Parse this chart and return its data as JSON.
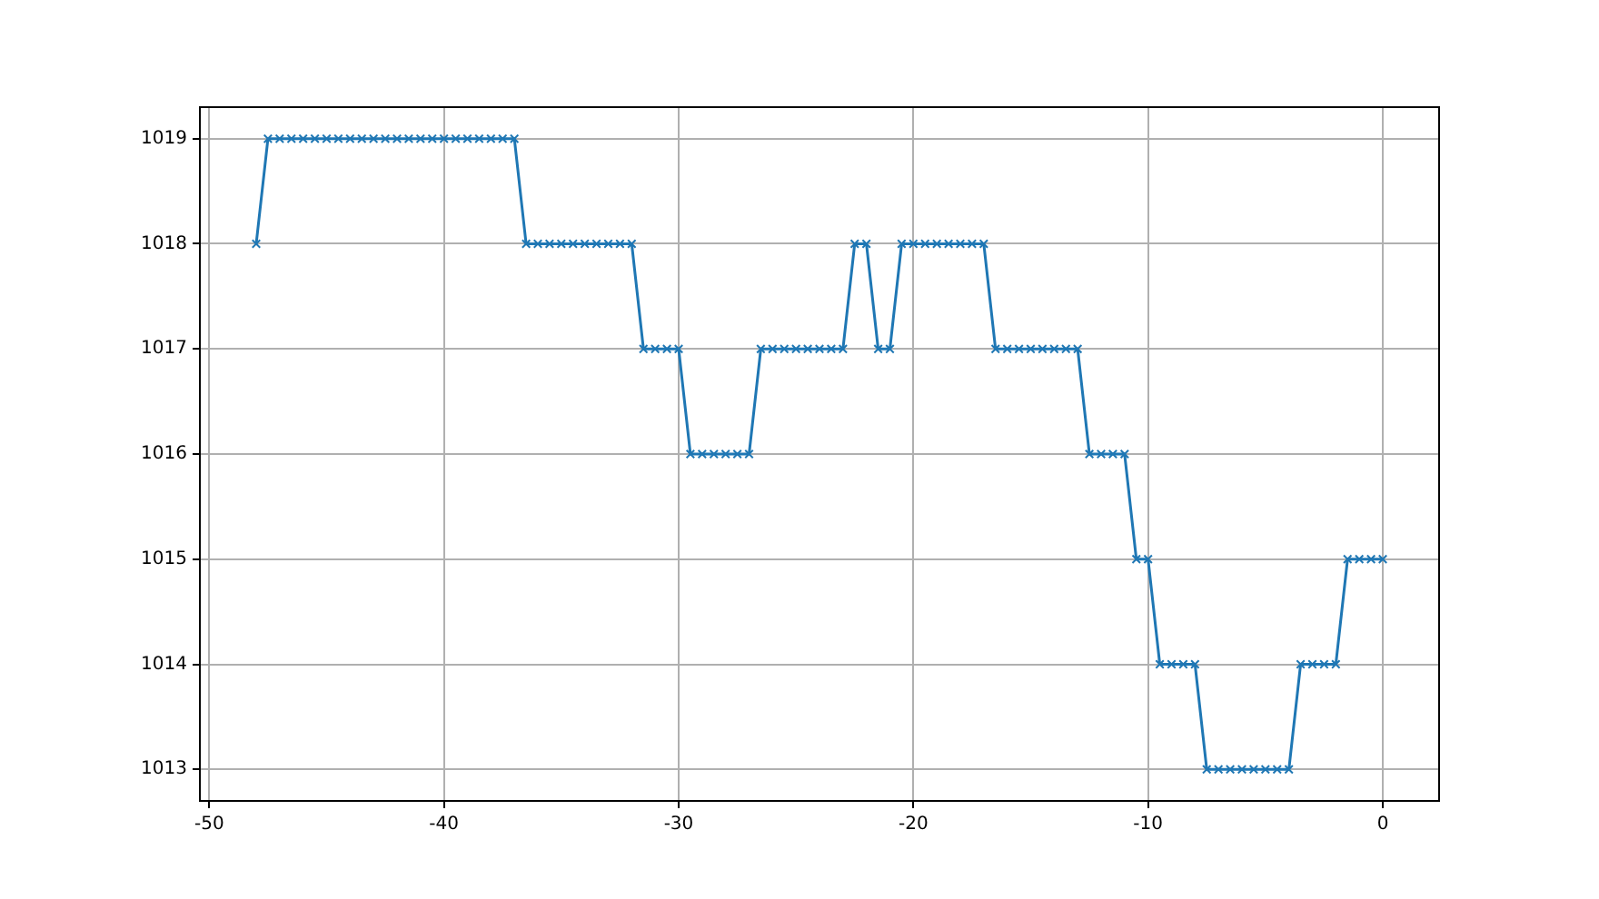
{
  "chart_data": {
    "type": "line",
    "x": [
      -48,
      -47.5,
      -47,
      -46.5,
      -46,
      -45.5,
      -45,
      -44.5,
      -44,
      -43.5,
      -43,
      -42.5,
      -42,
      -41.5,
      -41,
      -40.5,
      -40,
      -39.5,
      -39,
      -38.5,
      -38,
      -37.5,
      -37,
      -36.5,
      -36,
      -35.5,
      -35,
      -34.5,
      -34,
      -33.5,
      -33,
      -32.5,
      -32,
      -31.5,
      -31,
      -30.5,
      -30,
      -29.5,
      -29,
      -28.5,
      -28,
      -27.5,
      -27,
      -26.5,
      -26,
      -25.5,
      -25,
      -24.5,
      -24,
      -23.5,
      -23,
      -22.5,
      -22,
      -21.5,
      -21,
      -20.5,
      -20,
      -19.5,
      -19,
      -18.5,
      -18,
      -17.5,
      -17,
      -16.5,
      -16,
      -15.5,
      -15,
      -14.5,
      -14,
      -13.5,
      -13,
      -12.5,
      -12,
      -11.5,
      -11,
      -10.5,
      -10,
      -9.5,
      -9,
      -8.5,
      -8,
      -7.5,
      -7,
      -6.5,
      -6,
      -5.5,
      -5,
      -4.5,
      -4,
      -3.5,
      -3,
      -2.5,
      -2,
      -1.5,
      -1,
      -0.5,
      0
    ],
    "series": [
      {
        "color": "#1f77b4",
        "values": [
          1018,
          1019,
          1019,
          1019,
          1019,
          1019,
          1019,
          1019,
          1019,
          1019,
          1019,
          1019,
          1019,
          1019,
          1019,
          1019,
          1019,
          1019,
          1019,
          1019,
          1019,
          1019,
          1019,
          1018,
          1018,
          1018,
          1018,
          1018,
          1018,
          1018,
          1018,
          1018,
          1018,
          1017,
          1017,
          1017,
          1017,
          1016,
          1016,
          1016,
          1016,
          1016,
          1016,
          1017,
          1017,
          1017,
          1017,
          1017,
          1017,
          1017,
          1017,
          1018,
          1018,
          1017,
          1017,
          1018,
          1018,
          1018,
          1018,
          1018,
          1018,
          1018,
          1018,
          1017,
          1017,
          1017,
          1017,
          1017,
          1017,
          1017,
          1017,
          1016,
          1016,
          1016,
          1016,
          1015,
          1015,
          1014,
          1014,
          1014,
          1014,
          1013,
          1013,
          1013,
          1013,
          1013,
          1013,
          1013,
          1013,
          1014,
          1014,
          1014,
          1014,
          1015,
          1015,
          1015,
          1015
        ]
      }
    ],
    "xlim": [
      -50.4,
      2.4
    ],
    "xticks": [
      -50,
      -40,
      -30,
      -20,
      -10,
      0
    ],
    "ylim": [
      1012.7,
      1019.3
    ],
    "yticks": [
      1013,
      1014,
      1015,
      1016,
      1017,
      1018,
      1019
    ],
    "grid": true,
    "marker": "cross",
    "line_style": "solid"
  }
}
